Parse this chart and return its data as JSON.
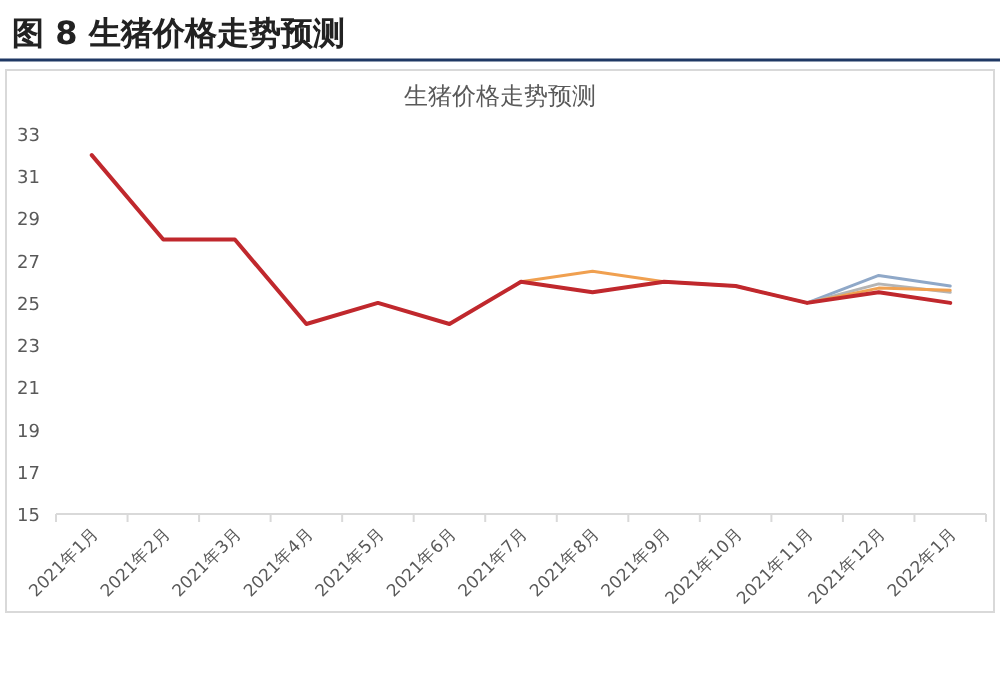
{
  "chart_data": {
    "type": "line",
    "title": "图 8  生猪价格走势预测",
    "subtitle": "生猪价格走势预测",
    "categories": [
      "2021年1月",
      "2021年2月",
      "2021年3月",
      "2021年4月",
      "2021年5月",
      "2021年6月",
      "2021年7月",
      "2021年8月",
      "2021年9月",
      "2021年10月",
      "2021年11月",
      "2021年12月",
      "2022年1月"
    ],
    "series": [
      {
        "color": "#8fa8c8",
        "values": [
          null,
          null,
          null,
          null,
          null,
          null,
          null,
          null,
          null,
          null,
          25,
          26.3,
          25.8
        ]
      },
      {
        "color": "#b4b4b4",
        "values": [
          null,
          null,
          null,
          null,
          null,
          null,
          null,
          null,
          null,
          null,
          25,
          25.9,
          25.5
        ]
      },
      {
        "color": "#f0a050",
        "values": [
          null,
          null,
          null,
          null,
          null,
          null,
          26,
          26.5,
          26,
          25.8,
          25,
          25.7,
          25.6
        ]
      },
      {
        "color": "#c0282d",
        "values": [
          32,
          28,
          28,
          24,
          25,
          24,
          26,
          25.5,
          26,
          25.8,
          25,
          25.5,
          25
        ]
      }
    ],
    "ylim": [
      15,
      33
    ],
    "yticks": [
      15,
      17,
      19,
      21,
      23,
      25,
      27,
      29,
      31,
      33
    ],
    "grid": false,
    "marker": "none",
    "line_style": "solid"
  }
}
